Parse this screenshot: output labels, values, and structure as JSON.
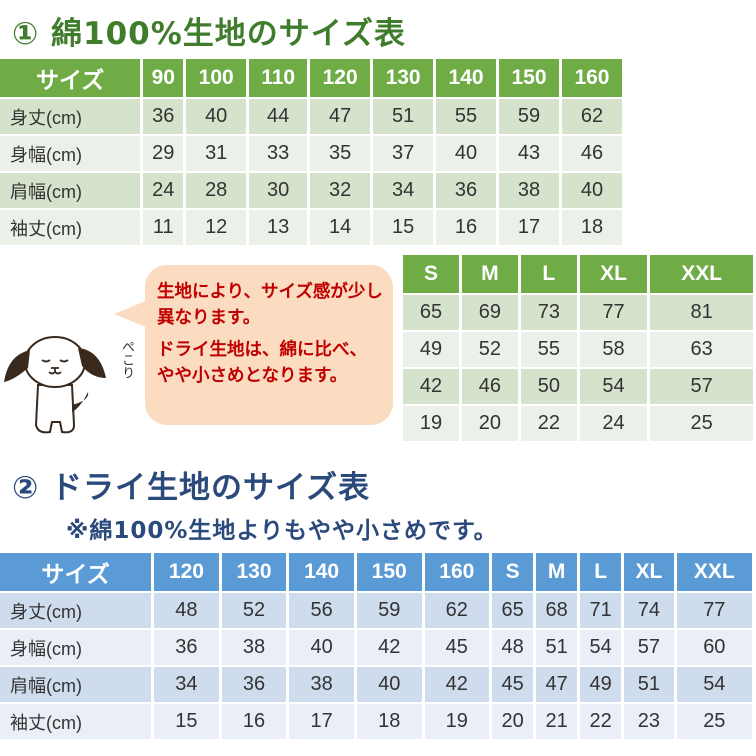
{
  "section1": {
    "title": "① 綿100%生地のサイズ表"
  },
  "table1": {
    "header": [
      "サイズ",
      "90",
      "100",
      "110",
      "120",
      "130",
      "140",
      "150",
      "160"
    ],
    "rows": [
      [
        "身丈(cm)",
        "36",
        "40",
        "44",
        "47",
        "51",
        "55",
        "59",
        "62"
      ],
      [
        "身幅(cm)",
        "29",
        "31",
        "33",
        "35",
        "37",
        "40",
        "43",
        "46"
      ],
      [
        "肩幅(cm)",
        "24",
        "28",
        "30",
        "32",
        "34",
        "36",
        "38",
        "40"
      ],
      [
        "袖丈(cm)",
        "11",
        "12",
        "13",
        "14",
        "15",
        "16",
        "17",
        "18"
      ]
    ]
  },
  "table2": {
    "header": [
      "S",
      "M",
      "L",
      "XL",
      "XXL"
    ],
    "rows": [
      [
        "65",
        "69",
        "73",
        "77",
        "81"
      ],
      [
        "49",
        "52",
        "55",
        "58",
        "63"
      ],
      [
        "42",
        "46",
        "50",
        "54",
        "57"
      ],
      [
        "19",
        "20",
        "22",
        "24",
        "25"
      ]
    ]
  },
  "bubble": {
    "line1": "生地により、サイズ感が少し異なります。",
    "line2": "ドライ生地は、綿に比べ、やや小さめとなります。"
  },
  "dog": {
    "caption": "ぺこり"
  },
  "section2": {
    "title": "② ドライ生地のサイズ表",
    "note": "※綿100%生地よりもやや小さめです。"
  },
  "table3": {
    "header": [
      "サイズ",
      "120",
      "130",
      "140",
      "150",
      "160",
      "S",
      "M",
      "L",
      "XL",
      "XXL"
    ],
    "rows": [
      [
        "身丈(cm)",
        "48",
        "52",
        "56",
        "59",
        "62",
        "65",
        "68",
        "71",
        "74",
        "77"
      ],
      [
        "身幅(cm)",
        "36",
        "38",
        "40",
        "42",
        "45",
        "48",
        "51",
        "54",
        "57",
        "60"
      ],
      [
        "肩幅(cm)",
        "34",
        "36",
        "38",
        "40",
        "42",
        "45",
        "47",
        "49",
        "51",
        "54"
      ],
      [
        "袖丈(cm)",
        "15",
        "16",
        "17",
        "18",
        "19",
        "20",
        "21",
        "22",
        "23",
        "25"
      ]
    ]
  },
  "colors": {
    "green_header": "#6fac46",
    "blue_header": "#5b9bd5",
    "bubble": "#fbdcc0",
    "bubble_text": "#c00000"
  }
}
